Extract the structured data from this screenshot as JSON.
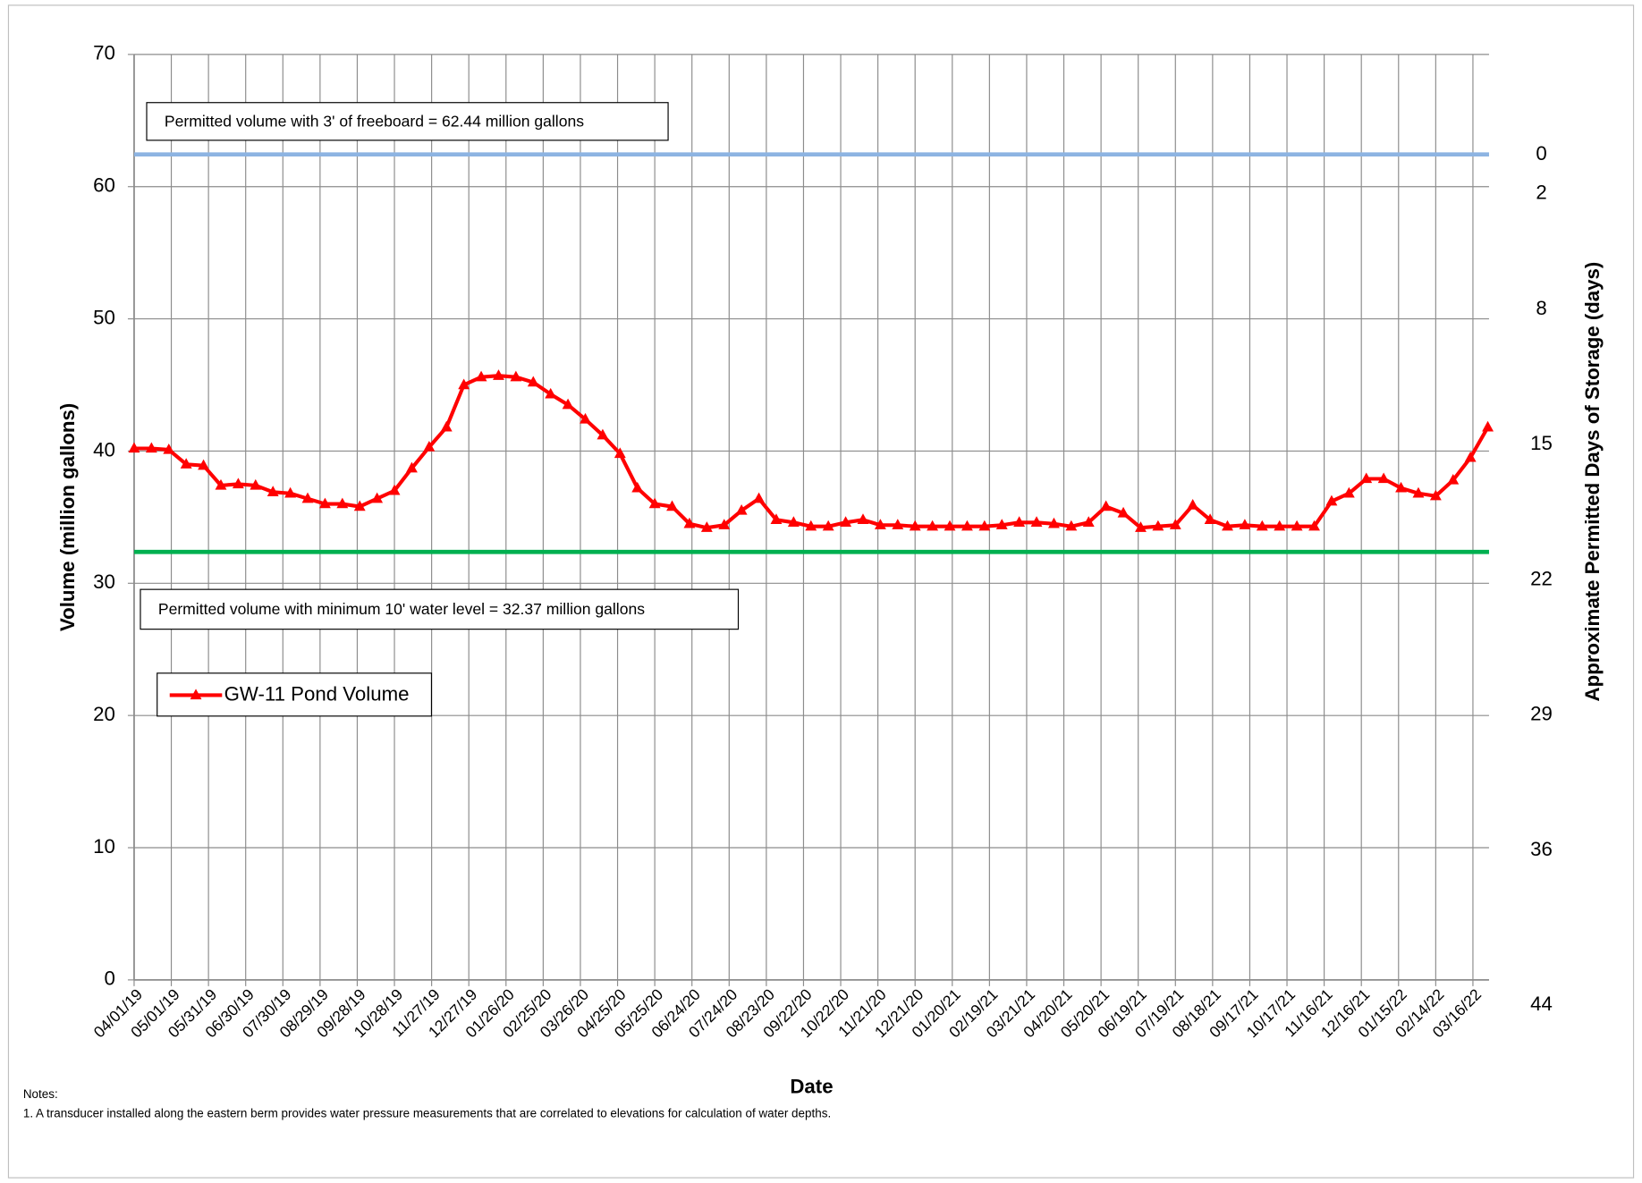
{
  "chart_data": {
    "type": "line",
    "x_label": "Date",
    "y_label": "Volume (million gallons)",
    "y2_label": "Approximate Permitted Days of Storage (days)",
    "x": [
      "04/01/19",
      "04/15/19",
      "04/29/19",
      "05/13/19",
      "05/27/19",
      "06/10/19",
      "06/24/19",
      "07/08/19",
      "07/22/19",
      "08/05/19",
      "08/19/19",
      "09/02/19",
      "09/16/19",
      "09/30/19",
      "10/14/19",
      "10/28/19",
      "11/11/19",
      "11/25/19",
      "12/09/19",
      "12/23/19",
      "01/06/20",
      "01/20/20",
      "02/03/20",
      "02/17/20",
      "03/02/20",
      "03/16/20",
      "03/30/20",
      "04/13/20",
      "04/27/20",
      "05/11/20",
      "05/25/20",
      "06/08/20",
      "06/22/20",
      "07/06/20",
      "07/20/20",
      "08/03/20",
      "08/17/20",
      "08/31/20",
      "09/14/20",
      "09/28/20",
      "10/12/20",
      "10/26/20",
      "11/09/20",
      "11/23/20",
      "12/07/20",
      "12/21/20",
      "01/04/21",
      "01/18/21",
      "02/01/21",
      "02/15/21",
      "03/01/21",
      "03/15/21",
      "03/29/21",
      "04/12/21",
      "04/26/21",
      "05/10/21",
      "05/24/21",
      "06/07/21",
      "06/21/21",
      "07/05/21",
      "07/19/21",
      "08/02/21",
      "08/16/21",
      "08/30/21",
      "09/13/21",
      "09/27/21",
      "10/11/21",
      "10/25/21",
      "11/08/21",
      "11/22/21",
      "12/06/21",
      "12/20/21",
      "01/03/22",
      "01/17/22",
      "01/31/22",
      "02/14/22",
      "02/28/22",
      "03/14/22",
      "03/28/22"
    ],
    "series": [
      {
        "name": "GW-11 Pond Volume",
        "color": "#ff0000",
        "values": [
          40.2,
          40.2,
          40.1,
          39.0,
          38.9,
          37.4,
          37.5,
          37.4,
          36.9,
          36.8,
          36.4,
          36.0,
          36.0,
          35.8,
          36.4,
          37.0,
          38.7,
          40.3,
          41.8,
          45.0,
          45.6,
          45.7,
          45.6,
          45.2,
          44.3,
          43.5,
          42.4,
          41.2,
          39.8,
          37.2,
          36.0,
          35.8,
          34.5,
          34.2,
          34.4,
          35.5,
          36.4,
          34.8,
          34.6,
          34.3,
          34.3,
          34.6,
          34.8,
          34.4,
          34.4,
          34.3,
          34.3,
          34.3,
          34.3,
          34.3,
          34.4,
          34.6,
          34.6,
          34.5,
          34.3,
          34.6,
          35.8,
          35.3,
          34.2,
          34.3,
          34.4,
          35.9,
          34.8,
          34.3,
          34.4,
          34.3,
          34.3,
          34.3,
          34.3,
          36.2,
          36.8,
          37.9,
          37.9,
          37.2,
          36.8,
          36.6,
          37.8,
          39.5,
          41.8
        ]
      }
    ],
    "xlim": [
      "04/01/19",
      "03/29/22"
    ],
    "xticks": [
      "04/01/19",
      "05/01/19",
      "05/31/19",
      "06/30/19",
      "07/30/19",
      "08/29/19",
      "09/28/19",
      "10/28/19",
      "11/27/19",
      "12/27/19",
      "01/26/20",
      "02/25/20",
      "03/26/20",
      "04/25/20",
      "05/25/20",
      "06/24/20",
      "07/24/20",
      "08/23/20",
      "09/22/20",
      "10/22/20",
      "11/21/20",
      "12/21/20",
      "01/20/21",
      "02/19/21",
      "03/21/21",
      "04/20/21",
      "05/20/21",
      "06/19/21",
      "07/19/21",
      "08/18/21",
      "09/17/21",
      "10/17/21",
      "11/16/21",
      "12/16/21",
      "01/15/22",
      "02/14/22",
      "03/16/22"
    ],
    "ylim": [
      0,
      70
    ],
    "yticks": [
      0,
      10,
      20,
      30,
      40,
      50,
      60,
      70
    ],
    "y2lim": [
      42.7,
      -5.2
    ],
    "y2ticks": [
      0,
      2,
      8,
      15,
      22,
      29,
      36,
      44
    ],
    "grid": true,
    "legend": "left",
    "reference_lines": [
      {
        "value": 62.44,
        "color": "#8db4e2",
        "label": "Permitted volume with 3' of freeboard = 62.44 million gallons"
      },
      {
        "value": 32.37,
        "color": "#00b050",
        "label": "Permitted volume with minimum 10' water level = 32.37 million gallons"
      }
    ],
    "notes": [
      "Notes:",
      "1. A transducer installed along the eastern berm provides water pressure measurements that are correlated to elevations for calculation of water depths."
    ]
  }
}
